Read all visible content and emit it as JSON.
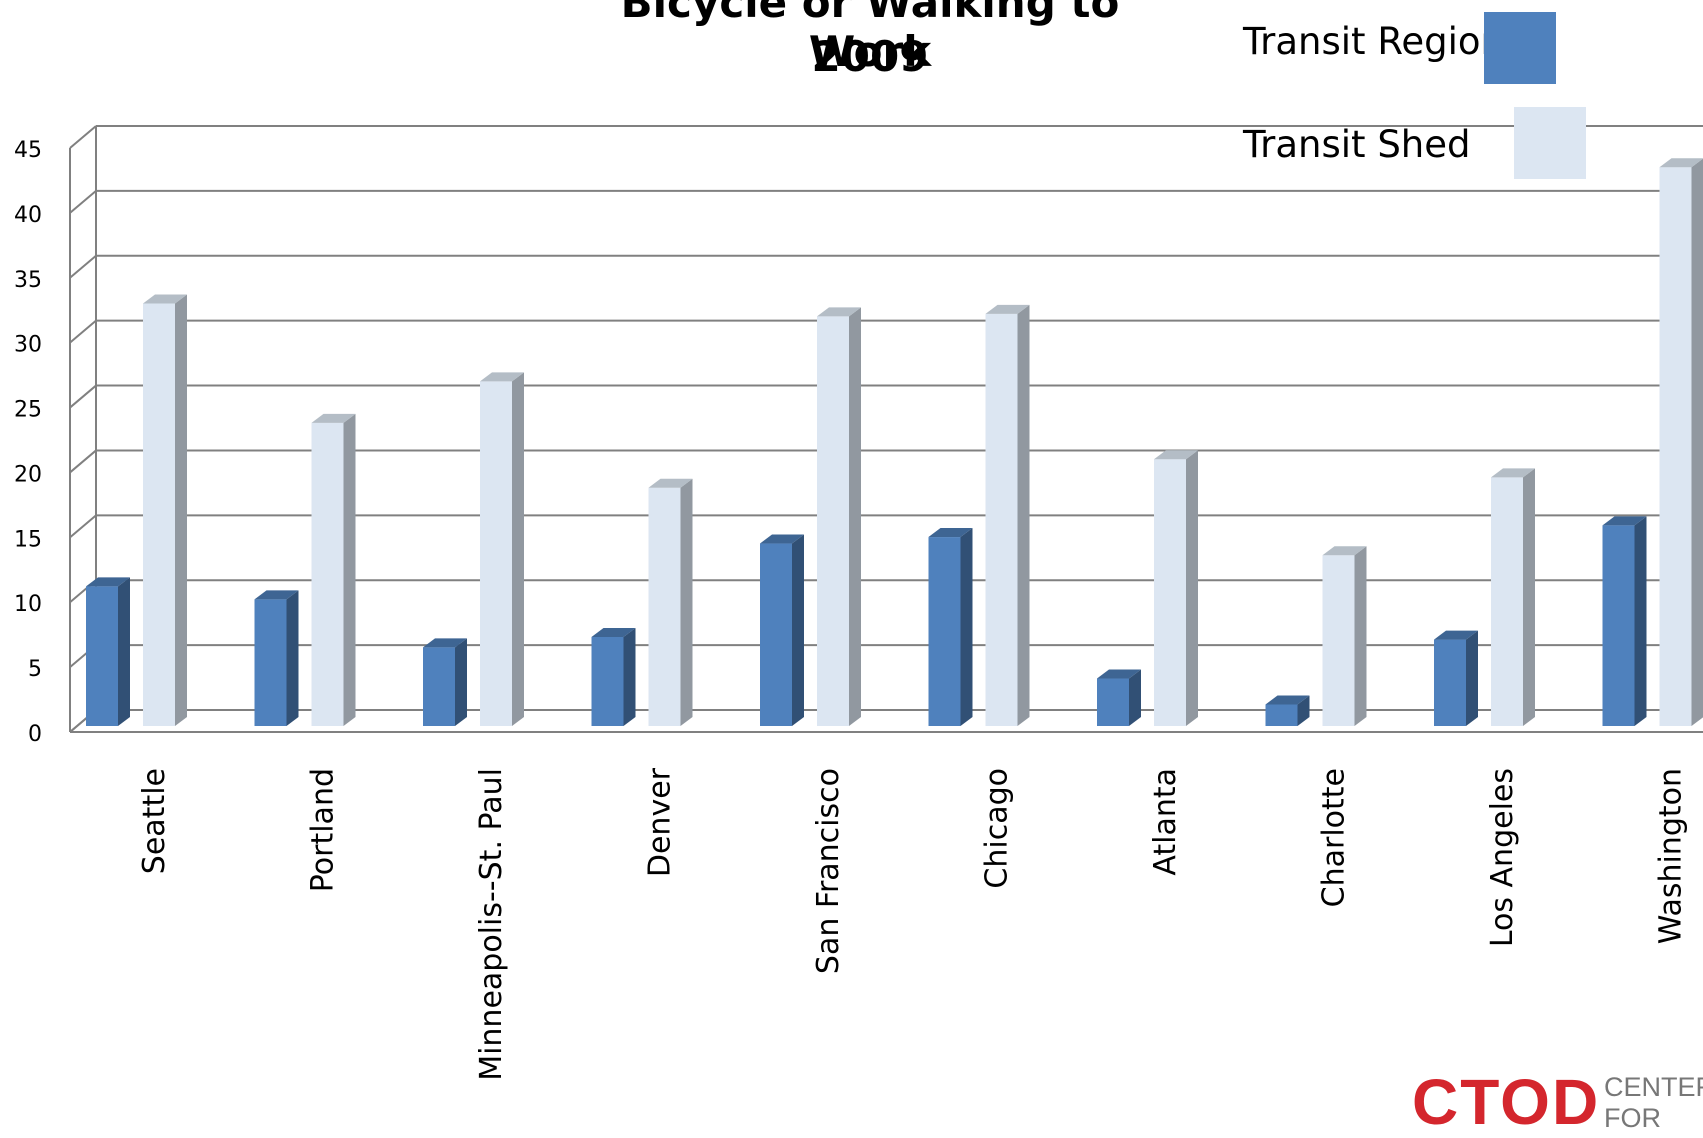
{
  "chart_data": {
    "type": "bar",
    "title": [
      "Bicycle or Walking to Work",
      "2009"
    ],
    "categories": [
      "Seattle",
      "Portland",
      "Minneapolis--St. Paul",
      "Denver",
      "San Francisco",
      "Chicago",
      "Atlanta",
      "Charlotte",
      "Los Angeles",
      "Washington"
    ],
    "series": [
      {
        "name": "Transit Region",
        "color": "#4f81bd",
        "values": [
          12.3,
          11.3,
          7.6,
          8.4,
          15.6,
          16.1,
          5.2,
          3.2,
          8.2,
          17.0
        ]
      },
      {
        "name": "Transit Shed",
        "color": "#dce6f2",
        "values": [
          34.1,
          24.9,
          28.1,
          19.9,
          33.1,
          33.3,
          22.1,
          14.7,
          20.7,
          44.6
        ]
      }
    ],
    "ylim": [
      0,
      45
    ],
    "yticks": [
      "0",
      "5",
      "10",
      "15",
      "20",
      "25",
      "30",
      "35",
      "40",
      "45"
    ],
    "grid": true,
    "legend_position": "top-right"
  },
  "logo": {
    "text": "CTOD",
    "subtitle": "CENTER FOR"
  }
}
